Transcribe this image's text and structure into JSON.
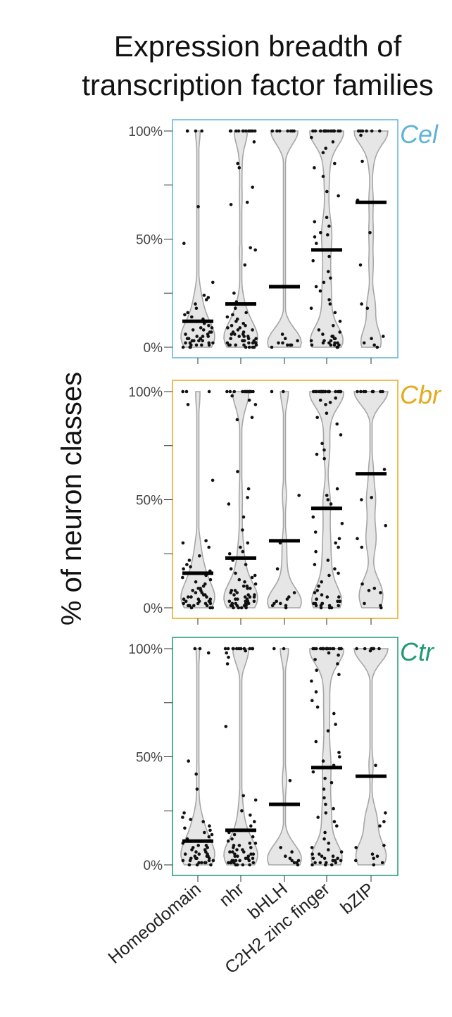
{
  "chart_data": {
    "type": "violin",
    "title_lines": [
      "Expression breadth of",
      "transcription factor families"
    ],
    "ylabel": "% of neuron classes",
    "ylim": [
      0,
      100
    ],
    "yticks": [
      "0%",
      "50%",
      "100%"
    ],
    "categories": [
      "Homeodomain",
      "nhr",
      "bHLH",
      "C2H2 zinc finger",
      "bZIP"
    ],
    "panels": [
      {
        "species": "Cel",
        "color": "#5fb3d6",
        "means": [
          12,
          20,
          28,
          45,
          67
        ],
        "points": [
          [
            100,
            100,
            100,
            100,
            65,
            48,
            30,
            24,
            23,
            22,
            20,
            18,
            16,
            15,
            14,
            13,
            12,
            11,
            10,
            9,
            9,
            8,
            8,
            7,
            7,
            6,
            6,
            5,
            5,
            5,
            4,
            4,
            4,
            3,
            3,
            3,
            3,
            2,
            2,
            2,
            2,
            1,
            1,
            1,
            1,
            0,
            0,
            0
          ],
          [
            100,
            100,
            100,
            100,
            100,
            100,
            100,
            100,
            100,
            100,
            100,
            100,
            95,
            85,
            83,
            74,
            67,
            66,
            46,
            45,
            38,
            25,
            21,
            20,
            18,
            16,
            15,
            14,
            13,
            12,
            11,
            10,
            10,
            9,
            9,
            8,
            8,
            7,
            7,
            6,
            6,
            6,
            5,
            5,
            5,
            4,
            4,
            4,
            3,
            3,
            3,
            3,
            2,
            2,
            2,
            2,
            2,
            1,
            1,
            1,
            1,
            1,
            0,
            0,
            0,
            0
          ],
          [
            100,
            100,
            100,
            100,
            100,
            100,
            100,
            6,
            4,
            3,
            2,
            2,
            1,
            1,
            1,
            0
          ],
          [
            100,
            100,
            100,
            100,
            100,
            100,
            100,
            100,
            100,
            100,
            100,
            100,
            100,
            100,
            100,
            100,
            100,
            100,
            100,
            97,
            95,
            92,
            90,
            85,
            83,
            79,
            72,
            70,
            60,
            58,
            56,
            53,
            52,
            51,
            48,
            45,
            42,
            40,
            35,
            32,
            30,
            28,
            26,
            22,
            20,
            18,
            16,
            12,
            10,
            8,
            7,
            6,
            5,
            5,
            4,
            4,
            3,
            3,
            3,
            2,
            2,
            2,
            2,
            1,
            1,
            1,
            1,
            0,
            0,
            0
          ],
          [
            100,
            100,
            100,
            100,
            100,
            100,
            100,
            98,
            86,
            68,
            53,
            38,
            20,
            18,
            5,
            4,
            2,
            1,
            0
          ]
        ]
      },
      {
        "species": "Cbr",
        "color": "#e3aa1e",
        "means": [
          16,
          23,
          31,
          46,
          62
        ],
        "points": [
          [
            100,
            100,
            100,
            94,
            59,
            31,
            30,
            28,
            24,
            22,
            20,
            19,
            18,
            17,
            16,
            15,
            14,
            13,
            12,
            11,
            10,
            9,
            9,
            8,
            8,
            7,
            7,
            6,
            6,
            5,
            5,
            5,
            4,
            4,
            4,
            3,
            3,
            3,
            3,
            2,
            2,
            2,
            2,
            1,
            1,
            1,
            1,
            0,
            0,
            0
          ],
          [
            100,
            100,
            100,
            100,
            100,
            100,
            100,
            100,
            100,
            100,
            100,
            100,
            100,
            98,
            96,
            94,
            88,
            87,
            63,
            55,
            51,
            48,
            42,
            36,
            30,
            28,
            26,
            25,
            22,
            20,
            18,
            16,
            15,
            14,
            13,
            12,
            11,
            10,
            10,
            9,
            9,
            8,
            8,
            7,
            7,
            6,
            6,
            6,
            5,
            5,
            5,
            4,
            4,
            4,
            3,
            3,
            3,
            3,
            2,
            2,
            2,
            2,
            2,
            1,
            1,
            1,
            1,
            1,
            0,
            0,
            0,
            0
          ],
          [
            100,
            100,
            52,
            30,
            18,
            7,
            5,
            4,
            3,
            2,
            2,
            1,
            1,
            0
          ],
          [
            100,
            100,
            100,
            100,
            100,
            100,
            100,
            100,
            100,
            100,
            100,
            100,
            100,
            100,
            100,
            100,
            100,
            100,
            100,
            100,
            97,
            96,
            95,
            94,
            90,
            88,
            85,
            80,
            76,
            73,
            71,
            69,
            55,
            52,
            50,
            48,
            46,
            42,
            39,
            35,
            32,
            30,
            28,
            26,
            22,
            20,
            18,
            16,
            15,
            12,
            10,
            8,
            7,
            6,
            5,
            5,
            4,
            4,
            3,
            3,
            3,
            2,
            2,
            2,
            2,
            1,
            1,
            1,
            1,
            0,
            0,
            0
          ],
          [
            100,
            100,
            100,
            100,
            100,
            100,
            100,
            100,
            64,
            51,
            50,
            38,
            32,
            28,
            11,
            9,
            8,
            7,
            2,
            1,
            0
          ]
        ]
      },
      {
        "species": "Ctr",
        "color": "#1f9a6f",
        "means": [
          11,
          16,
          28,
          45,
          41
        ],
        "points": [
          [
            100,
            100,
            98,
            48,
            42,
            35,
            24,
            22,
            21,
            20,
            18,
            17,
            16,
            15,
            14,
            13,
            12,
            11,
            10,
            9,
            9,
            8,
            8,
            7,
            7,
            6,
            6,
            5,
            5,
            5,
            4,
            4,
            4,
            3,
            3,
            3,
            3,
            2,
            2,
            2,
            2,
            1,
            1,
            1,
            1,
            0,
            0,
            0
          ],
          [
            100,
            100,
            100,
            100,
            100,
            100,
            100,
            100,
            100,
            100,
            100,
            100,
            99,
            98,
            96,
            93,
            64,
            32,
            30,
            25,
            23,
            20,
            18,
            16,
            15,
            14,
            13,
            12,
            11,
            10,
            10,
            9,
            9,
            8,
            8,
            7,
            7,
            6,
            6,
            6,
            5,
            5,
            5,
            4,
            4,
            4,
            3,
            3,
            3,
            3,
            2,
            2,
            2,
            2,
            2,
            1,
            1,
            1,
            1,
            1,
            0,
            0,
            0,
            0
          ],
          [
            100,
            100,
            39,
            8,
            6,
            4,
            3,
            2,
            2,
            1,
            1,
            0
          ],
          [
            100,
            100,
            100,
            100,
            100,
            100,
            100,
            100,
            100,
            100,
            100,
            100,
            100,
            100,
            100,
            100,
            100,
            100,
            100,
            98,
            97,
            95,
            93,
            90,
            88,
            85,
            80,
            76,
            73,
            70,
            65,
            62,
            57,
            52,
            50,
            48,
            46,
            43,
            40,
            38,
            35,
            31,
            28,
            26,
            24,
            22,
            20,
            18,
            15,
            12,
            10,
            8,
            7,
            6,
            5,
            5,
            4,
            4,
            3,
            3,
            3,
            2,
            2,
            2,
            2,
            1,
            1,
            1,
            1,
            0,
            0,
            0
          ],
          [
            100,
            100,
            100,
            100,
            100,
            100,
            100,
            99,
            46,
            24,
            20,
            18,
            9,
            8,
            5,
            4,
            3,
            2,
            1,
            0
          ]
        ]
      }
    ]
  }
}
